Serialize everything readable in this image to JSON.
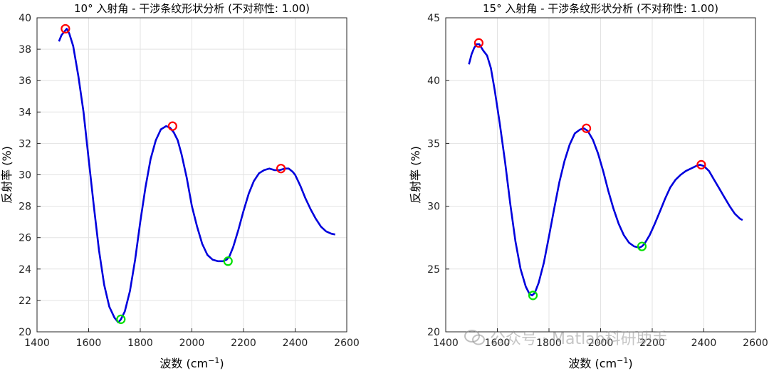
{
  "chart_data": [
    {
      "type": "line",
      "title": "10° 入射角 - 干涉条纹形状分析 (不对称性: 1.00)",
      "xlabel": "波数 (cm",
      "xlabel_sup": "−1",
      "xlabel_close": ")",
      "ylabel": "反射率 (%)",
      "xlim": [
        1400,
        2600
      ],
      "ylim": [
        20,
        40
      ],
      "xticks": [
        "1400",
        "1600",
        "1800",
        "2000",
        "2200",
        "2400",
        "2600"
      ],
      "yticks": [
        "20",
        "22",
        "24",
        "26",
        "28",
        "30",
        "32",
        "34",
        "36",
        "38",
        "40"
      ],
      "grid": true,
      "series": [
        {
          "color": "#0000dd",
          "x": [
            1485,
            1495,
            1505,
            1515,
            1525,
            1540,
            1560,
            1580,
            1600,
            1620,
            1640,
            1660,
            1680,
            1700,
            1715,
            1725,
            1740,
            1760,
            1780,
            1800,
            1820,
            1840,
            1860,
            1880,
            1900,
            1915,
            1930,
            1945,
            1960,
            1980,
            2000,
            2020,
            2040,
            2060,
            2080,
            2100,
            2120,
            2135,
            2145,
            2160,
            2180,
            2200,
            2220,
            2240,
            2260,
            2280,
            2300,
            2320,
            2340,
            2360,
            2375,
            2390,
            2400,
            2420,
            2440,
            2460,
            2480,
            2500,
            2520,
            2540,
            2555
          ],
          "y": [
            38.5,
            38.9,
            39.1,
            39.3,
            39.0,
            38.2,
            36.3,
            34.0,
            31.0,
            28.0,
            25.2,
            23.0,
            21.6,
            20.9,
            20.6,
            20.8,
            21.3,
            22.6,
            24.6,
            27.0,
            29.2,
            31.0,
            32.2,
            32.9,
            33.1,
            33.0,
            32.7,
            32.2,
            31.3,
            29.8,
            28.0,
            26.7,
            25.6,
            24.9,
            24.6,
            24.5,
            24.5,
            24.6,
            24.8,
            25.4,
            26.5,
            27.7,
            28.8,
            29.6,
            30.1,
            30.3,
            30.4,
            30.3,
            30.3,
            30.4,
            30.4,
            30.2,
            30.0,
            29.3,
            28.5,
            27.8,
            27.2,
            26.7,
            26.4,
            26.25,
            26.2
          ]
        }
      ],
      "peaks": [
        [
          1510,
          39.3
        ],
        [
          1925,
          33.1
        ],
        [
          2345,
          30.4
        ]
      ],
      "troughs": [
        [
          1725,
          20.8
        ],
        [
          2140,
          24.5
        ]
      ]
    },
    {
      "type": "line",
      "title": "15° 入射角 - 干涉条纹形状分析 (不对称性: 1.00)",
      "xlabel": "波数 (cm",
      "xlabel_sup": "−1",
      "xlabel_close": ")",
      "ylabel": "反射率 (%)",
      "xlim": [
        1400,
        2600
      ],
      "ylim": [
        20,
        45
      ],
      "xticks": [
        "1400",
        "1600",
        "1800",
        "2000",
        "2200",
        "2400",
        "2600"
      ],
      "yticks": [
        "20",
        "25",
        "30",
        "35",
        "40",
        "45"
      ],
      "grid": true,
      "series": [
        {
          "color": "#0000dd",
          "x": [
            1490,
            1500,
            1510,
            1520,
            1530,
            1545,
            1560,
            1575,
            1590,
            1610,
            1630,
            1650,
            1670,
            1690,
            1710,
            1725,
            1735,
            1745,
            1760,
            1780,
            1800,
            1820,
            1840,
            1860,
            1880,
            1900,
            1920,
            1935,
            1950,
            1970,
            1990,
            2010,
            2030,
            2050,
            2070,
            2090,
            2110,
            2130,
            2150,
            2160,
            2170,
            2190,
            2210,
            2230,
            2250,
            2270,
            2290,
            2310,
            2330,
            2350,
            2370,
            2385,
            2400,
            2420,
            2440,
            2460,
            2480,
            2500,
            2520,
            2540,
            2550
          ],
          "y": [
            41.3,
            42.1,
            42.6,
            42.9,
            42.9,
            42.4,
            42.0,
            41.0,
            39.2,
            36.5,
            33.5,
            30.2,
            27.2,
            25.0,
            23.6,
            23.0,
            22.9,
            23.1,
            23.9,
            25.5,
            27.6,
            29.8,
            31.9,
            33.6,
            34.9,
            35.8,
            36.1,
            36.2,
            36.0,
            35.3,
            34.2,
            32.8,
            31.2,
            29.8,
            28.6,
            27.7,
            27.1,
            26.8,
            26.7,
            26.8,
            27.0,
            27.7,
            28.6,
            29.6,
            30.6,
            31.5,
            32.1,
            32.5,
            32.8,
            33.0,
            33.2,
            33.3,
            33.2,
            32.8,
            32.1,
            31.4,
            30.7,
            30.0,
            29.4,
            29.0,
            28.9
          ]
        }
      ],
      "peaks": [
        [
          1528,
          43.0
        ],
        [
          1945,
          36.2
        ],
        [
          2390,
          33.3
        ]
      ],
      "troughs": [
        [
          1738,
          22.9
        ],
        [
          2160,
          26.8
        ]
      ]
    }
  ],
  "watermark": {
    "text": "公众号 · Matlab科研助手",
    "icon": "wechat-icon"
  }
}
